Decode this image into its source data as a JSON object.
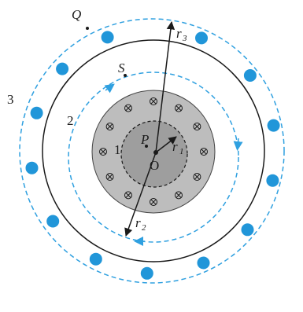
{
  "labels": {
    "Q": "Q",
    "S": "S",
    "P": "P",
    "O": "O",
    "loop3": "3",
    "loop2": "2",
    "loop1": "1",
    "r1": "r",
    "r1_sub": "1",
    "r2": "r",
    "r2_sub": "2",
    "r3": "r",
    "r3_sub": "3"
  },
  "colors": {
    "background": "#ffffff",
    "outer_ring_line": "#1a1a1a",
    "dashed_loop": "#2fa0e0",
    "outward_current_dot": "#2196d9",
    "inner_conductor": "#bdbdbd",
    "inner_core": "#9e9e9e",
    "arrow": "#1a1a1a"
  },
  "icons": {
    "inward_current": "circle-cross-symbol",
    "outward_current": "filled-dot"
  }
}
